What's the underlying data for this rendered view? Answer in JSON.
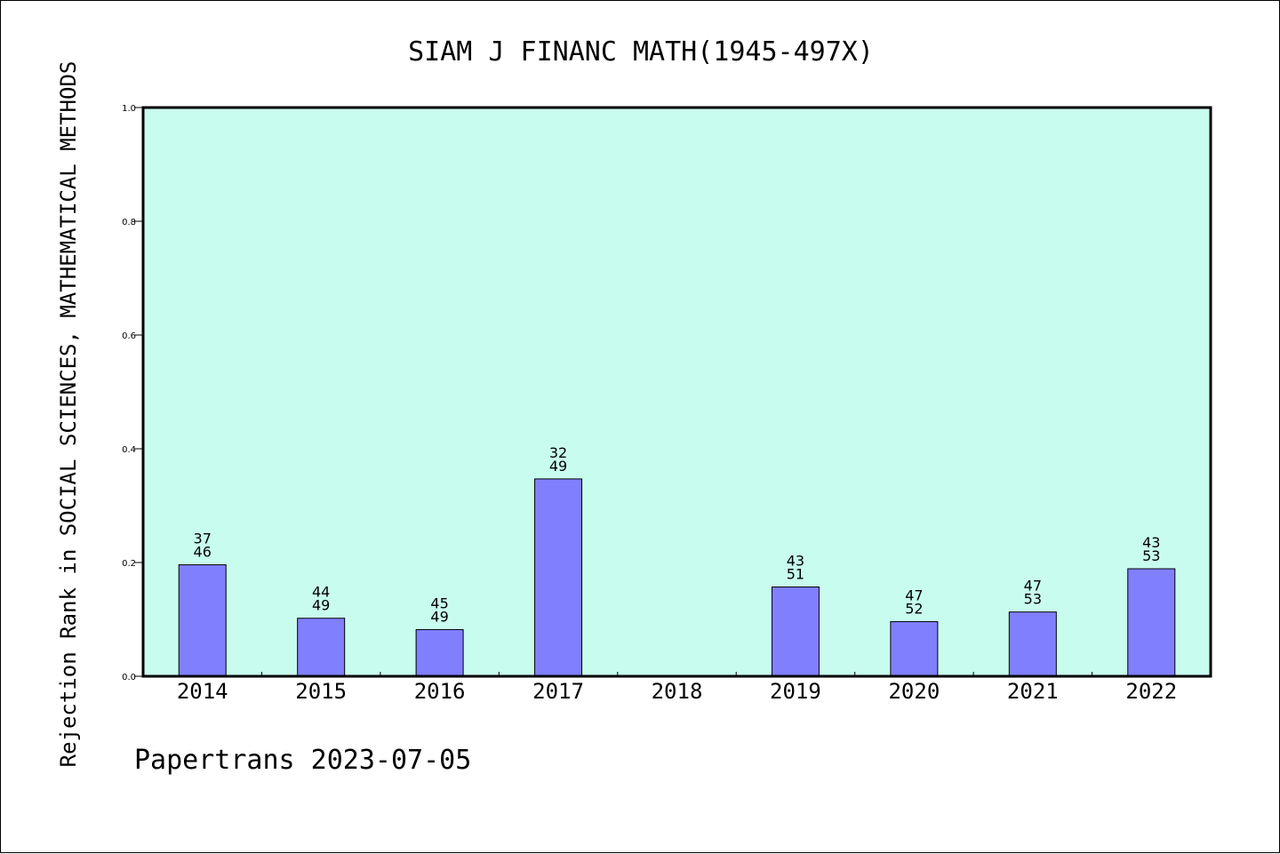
{
  "chart_data": {
    "type": "bar",
    "title": "SIAM J FINANC MATH(1945-497X)",
    "ylabel": "Rejection Rank in SOCIAL SCIENCES, MATHEMATICAL METHODS",
    "xlabel": "",
    "ylim": [
      0,
      1.0
    ],
    "yticks": [
      "0.0",
      "0.2",
      "0.4",
      "0.6",
      "0.8",
      "1.0"
    ],
    "categories": [
      "2014",
      "2015",
      "2016",
      "2017",
      "2018",
      "2019",
      "2020",
      "2021",
      "2022"
    ],
    "values": [
      0.196,
      0.102,
      0.082,
      0.347,
      null,
      0.157,
      0.096,
      0.113,
      0.189
    ],
    "bar_labels_top": [
      "37",
      "44",
      "45",
      "32",
      "",
      "43",
      "47",
      "47",
      "43"
    ],
    "bar_labels_bottom": [
      "46",
      "49",
      "49",
      "49",
      "",
      "51",
      "52",
      "53",
      "53"
    ],
    "grid": false,
    "footer": "Papertrans 2023-07-05",
    "colors": {
      "plot_background": "#c8fcee",
      "bar_fill": "#8080ff",
      "bar_stroke": "#000000"
    }
  }
}
